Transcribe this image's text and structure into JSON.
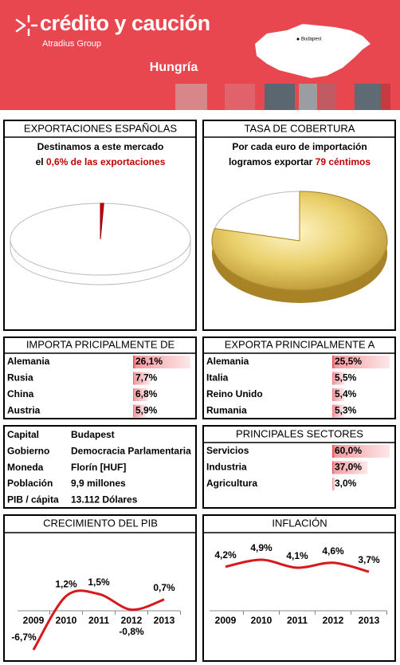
{
  "header": {
    "brand": "crédito y caución",
    "group": "Atradius Group",
    "country": "Hungría",
    "map_label": "Budapest"
  },
  "exports": {
    "title": "EXPORTACIONES ESPAÑOLAS",
    "line1": "Destinamos a este mercado",
    "line2_before": "el ",
    "share": {
      "value": 0.6,
      "label": "0,6%"
    },
    "line2_after": " de las exportaciones"
  },
  "coverage": {
    "title": "TASA DE COBERTURA",
    "line1": "Por cada euro de importación",
    "line2_before": "logramos exportar ",
    "cents": {
      "value": 79,
      "label": "79 céntimos"
    }
  },
  "imports_from": {
    "title": "IMPORTA PRICIPALMENTE DE",
    "rows": [
      {
        "name": "Alemania",
        "value": 26.1,
        "label": "26,1%"
      },
      {
        "name": "Rusia",
        "value": 7.7,
        "label": "7,7%"
      },
      {
        "name": "China",
        "value": 6.8,
        "label": "6,8%"
      },
      {
        "name": "Austria",
        "value": 5.9,
        "label": "5,9%"
      }
    ]
  },
  "exports_to": {
    "title": "EXPORTA PRINCIPALMENTE A",
    "rows": [
      {
        "name": "Alemania",
        "value": 25.5,
        "label": "25,5%"
      },
      {
        "name": "Italia",
        "value": 5.5,
        "label": "5,5%"
      },
      {
        "name": "Reino Unido",
        "value": 5.4,
        "label": "5,4%"
      },
      {
        "name": "Rumania",
        "value": 5.3,
        "label": "5,3%"
      }
    ]
  },
  "facts": {
    "rows": [
      {
        "label": "Capital",
        "value": "Budapest"
      },
      {
        "label": "Gobierno",
        "value": "Democracia Parlamentaria"
      },
      {
        "label": "Moneda",
        "value": "Florín [HUF]"
      },
      {
        "label": "Población",
        "value": "9,9 millones"
      },
      {
        "label": "PIB / cápita",
        "value": "13.112 Dólares"
      }
    ]
  },
  "sectors": {
    "title": "PRINCIPALES SECTORES",
    "rows": [
      {
        "name": "Servicios",
        "value": 60.0,
        "label": "60,0%"
      },
      {
        "name": "Industria",
        "value": 37.0,
        "label": "37,0%"
      },
      {
        "name": "Agricultura",
        "value": 3.0,
        "label": "3,0%"
      }
    ]
  },
  "chart_data": [
    {
      "type": "line",
      "title": "CRECIMIENTO DEL PIB",
      "categories": [
        "2009",
        "2010",
        "2011",
        "2012",
        "2013"
      ],
      "values": [
        -6.7,
        1.2,
        1.5,
        -0.8,
        0.7
      ],
      "value_labels": [
        "-6,7%",
        "1,2%",
        "1,5%",
        "-0,8%",
        "0,7%"
      ],
      "color": "#d7191c"
    },
    {
      "type": "line",
      "title": "INFLACIÓN",
      "categories": [
        "2009",
        "2010",
        "2011",
        "2012",
        "2013"
      ],
      "values": [
        4.2,
        4.9,
        4.1,
        4.6,
        3.7
      ],
      "value_labels": [
        "4,2%",
        "4,9%",
        "4,1%",
        "4,6%",
        "3,7%"
      ],
      "color": "#d7191c"
    }
  ]
}
